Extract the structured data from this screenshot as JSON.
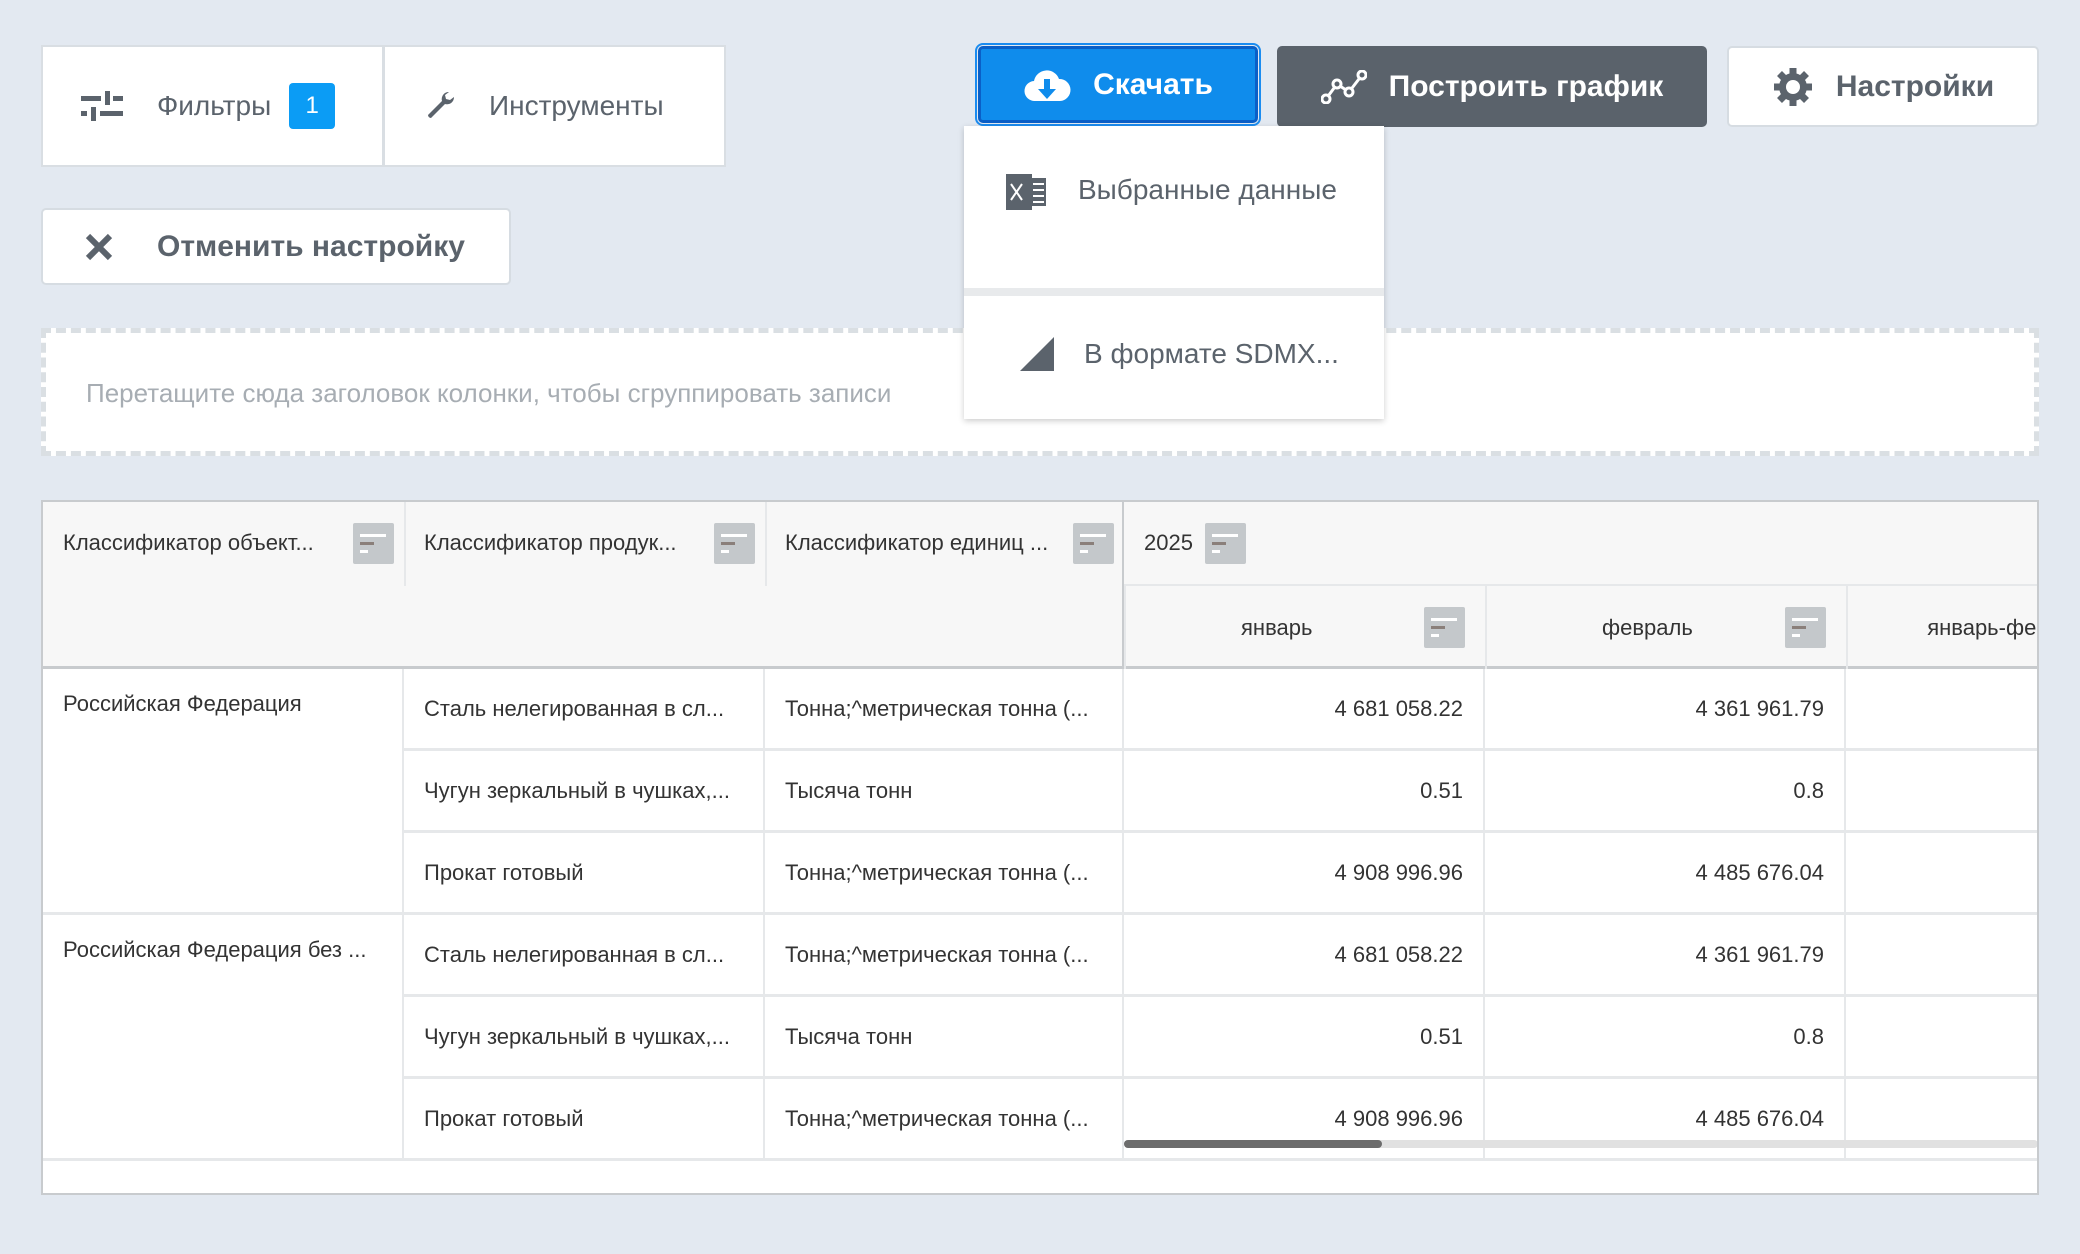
{
  "toolbar": {
    "filters_label": "Фильтры",
    "filters_count": "1",
    "tools_label": "Инструменты",
    "cancel_label": "Отменить настройку",
    "download_label": "Скачать",
    "chart_label": "Построить график",
    "settings_label": "Настройки"
  },
  "download_menu": {
    "items": [
      {
        "label": "Выбранные данные",
        "icon": "excel-icon"
      },
      {
        "label": "В формате SDMX...",
        "icon": "sdmx-icon"
      }
    ]
  },
  "group_panel": {
    "placeholder": "Перетащите сюда заголовок колонки, чтобы сгруппировать записи"
  },
  "table": {
    "headers": [
      "Классификатор объект...",
      "Классификатор продук...",
      "Классификатор единиц ..."
    ],
    "year": "2025",
    "months": [
      "январь",
      "февраль",
      "январь-фев"
    ],
    "rows": [
      {
        "region": "Российская Федерация",
        "product": "Сталь нелегированная в сл...",
        "unit": "Тонна;^метрическая тонна (...",
        "jan": "4 681 058.22",
        "feb": "4 361 961.79"
      },
      {
        "region": "",
        "product": "Чугун зеркальный в чушках,...",
        "unit": "Тысяча тонн",
        "jan": "0.51",
        "feb": "0.8"
      },
      {
        "region": "",
        "product": "Прокат готовый",
        "unit": "Тонна;^метрическая тонна (...",
        "jan": "4 908 996.96",
        "feb": "4 485 676.04"
      },
      {
        "region": "Российская Федерация без ...",
        "product": "Сталь нелегированная в сл...",
        "unit": "Тонна;^метрическая тонна (...",
        "jan": "4 681 058.22",
        "feb": "4 361 961.79"
      },
      {
        "region": "",
        "product": "Чугун зеркальный в чушках,...",
        "unit": "Тысяча тонн",
        "jan": "0.51",
        "feb": "0.8"
      },
      {
        "region": "",
        "product": "Прокат готовый",
        "unit": "Тонна;^метрическая тонна (...",
        "jan": "4 908 996.96",
        "feb": "4 485 676.04"
      }
    ]
  },
  "colors": {
    "primary": "#0f8cec",
    "dark_button": "#5a626b",
    "background": "#e3e9f1"
  }
}
